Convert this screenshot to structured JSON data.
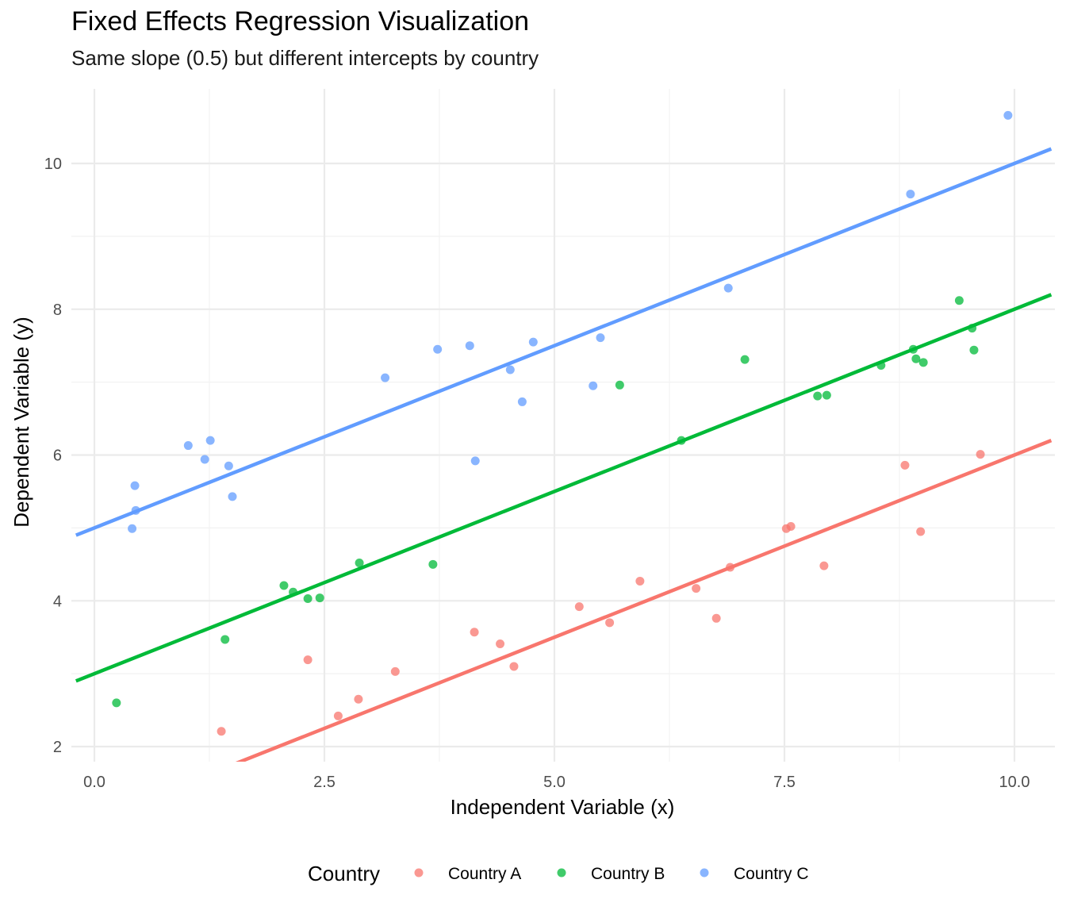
{
  "chart_data": {
    "type": "scatter",
    "title": "Fixed Effects Regression Visualization",
    "subtitle": "Same slope (0.5) but different intercepts by country",
    "xlabel": "Independent Variable (x)",
    "ylabel": "Dependent Variable (y)",
    "xlim": [
      -0.2,
      10.4
    ],
    "ylim": [
      1.8,
      11.0
    ],
    "x_ticks": [
      0,
      2.5,
      5,
      7.5,
      10
    ],
    "x_tick_labels": [
      "0.0",
      "2.5",
      "5.0",
      "7.5",
      "10.0"
    ],
    "y_ticks": [
      2,
      4,
      6,
      8,
      10
    ],
    "y_tick_labels": [
      "2",
      "4",
      "6",
      "8",
      "10"
    ],
    "grid": true,
    "legend": {
      "title": "Country",
      "position": "bottom"
    },
    "series": [
      {
        "name": "Country A",
        "color": "#F8766D",
        "line": {
          "slope": 0.5,
          "intercept": 1.0
        },
        "points": [
          [
            1.38,
            2.21
          ],
          [
            2.32,
            3.19
          ],
          [
            2.65,
            2.42
          ],
          [
            2.87,
            2.65
          ],
          [
            3.27,
            3.03
          ],
          [
            4.13,
            3.57
          ],
          [
            4.41,
            3.41
          ],
          [
            4.56,
            3.1
          ],
          [
            5.27,
            3.92
          ],
          [
            5.6,
            3.7
          ],
          [
            5.93,
            4.27
          ],
          [
            6.54,
            4.17
          ],
          [
            6.76,
            3.76
          ],
          [
            6.91,
            4.46
          ],
          [
            7.52,
            4.99
          ],
          [
            7.57,
            5.02
          ],
          [
            7.93,
            4.48
          ],
          [
            8.81,
            5.86
          ],
          [
            8.98,
            4.95
          ],
          [
            9.63,
            6.01
          ]
        ]
      },
      {
        "name": "Country B",
        "color": "#00BA38",
        "line": {
          "slope": 0.5,
          "intercept": 3.0
        },
        "points": [
          [
            0.24,
            2.6
          ],
          [
            1.42,
            3.47
          ],
          [
            2.06,
            4.21
          ],
          [
            2.16,
            4.12
          ],
          [
            2.32,
            4.03
          ],
          [
            2.45,
            4.04
          ],
          [
            2.88,
            4.52
          ],
          [
            3.68,
            4.5
          ],
          [
            5.71,
            6.96
          ],
          [
            6.38,
            6.2
          ],
          [
            7.07,
            7.31
          ],
          [
            7.86,
            6.81
          ],
          [
            7.96,
            6.82
          ],
          [
            8.55,
            7.23
          ],
          [
            8.9,
            7.45
          ],
          [
            8.93,
            7.32
          ],
          [
            9.01,
            7.27
          ],
          [
            9.4,
            8.12
          ],
          [
            9.54,
            7.74
          ],
          [
            9.56,
            7.44
          ]
        ]
      },
      {
        "name": "Country C",
        "color": "#619CFF",
        "line": {
          "slope": 0.5,
          "intercept": 5.0
        },
        "points": [
          [
            0.41,
            4.99
          ],
          [
            0.44,
            5.58
          ],
          [
            0.45,
            5.24
          ],
          [
            1.02,
            6.13
          ],
          [
            1.2,
            5.94
          ],
          [
            1.26,
            6.2
          ],
          [
            1.46,
            5.85
          ],
          [
            1.5,
            5.43
          ],
          [
            3.16,
            7.06
          ],
          [
            3.73,
            7.45
          ],
          [
            4.08,
            7.5
          ],
          [
            4.14,
            5.92
          ],
          [
            4.52,
            7.17
          ],
          [
            4.65,
            6.73
          ],
          [
            4.77,
            7.55
          ],
          [
            5.42,
            6.95
          ],
          [
            5.5,
            7.61
          ],
          [
            6.89,
            8.29
          ],
          [
            8.87,
            9.58
          ],
          [
            9.93,
            10.66
          ]
        ]
      }
    ]
  }
}
